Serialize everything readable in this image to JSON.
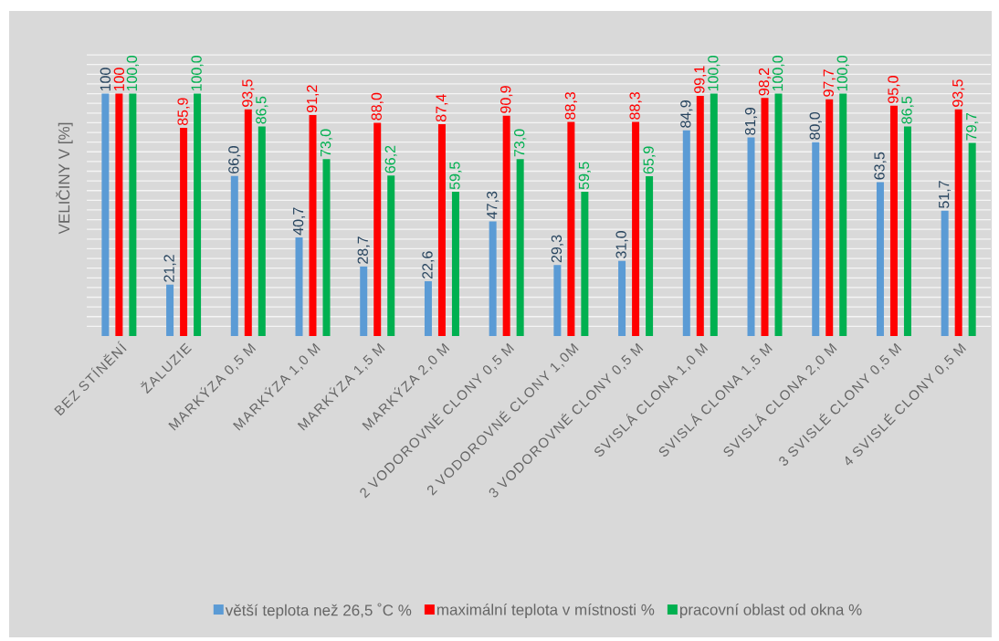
{
  "chart_data": {
    "type": "bar",
    "ylabel": "VELIČINY V [%]",
    "categories": [
      "BEZ STÍNĚNÍ",
      "ŽALUZIE",
      "MARKÝZA 0,5 M",
      "MARKÝZA 1,0 M",
      "MARKÝZA 1,5 M",
      "MARKÝZA 2,0 M",
      "2 VODOROVNÉ CLONY 0,5 M",
      "2 VODOROVNÉ CLONY 1,0M",
      "3 VODOROVNÉ CLONY 0,5 M",
      "SVISLÁ CLONA 1,0 M",
      "SVISLÁ CLONA 1,5 M",
      "SVISLÁ CLONA 2,0 M",
      "3 SVISLÉ CLONY 0,5 M",
      "4 SVISLÉ CLONY 0,5 M"
    ],
    "series": [
      {
        "name": "větší teplota než 26,5 ˚C %",
        "color": "#5b9bd5",
        "values": [
          100,
          21.2,
          66.0,
          40.7,
          28.7,
          22.6,
          47.3,
          29.3,
          31.0,
          84.9,
          81.9,
          80.0,
          63.5,
          51.7
        ],
        "value_labels": [
          "100",
          "21,2",
          "66,0",
          "40,7",
          "28,7",
          "22,6",
          "47,3",
          "29,3",
          "31,0",
          "84,9",
          "81,9",
          "80,0",
          "63,5",
          "51,7"
        ]
      },
      {
        "name": "maximální teplota v místnosti %",
        "color": "#ff0000",
        "values": [
          100,
          85.9,
          93.5,
          91.2,
          88.0,
          87.4,
          90.9,
          88.3,
          88.3,
          99.1,
          98.2,
          97.7,
          95.0,
          93.5
        ],
        "value_labels": [
          "100",
          "85,9",
          "93,5",
          "91,2",
          "88,0",
          "87,4",
          "90,9",
          "88,3",
          "88,3",
          "99,1",
          "98,2",
          "97,7",
          "95,0",
          "93,5"
        ]
      },
      {
        "name": "pracovní oblast od okna %",
        "color": "#00b050",
        "values": [
          100,
          100.0,
          86.5,
          73.0,
          66.2,
          59.5,
          73.0,
          59.5,
          65.9,
          100.0,
          100.0,
          100.0,
          86.5,
          79.7
        ],
        "value_labels": [
          "100,0",
          "100,0",
          "86,5",
          "73,0",
          "66,2",
          "59,5",
          "73,0",
          "59,5",
          "65,9",
          "100,0",
          "100,0",
          "100,0",
          "86,5",
          "79,7"
        ]
      }
    ],
    "ylim": [
      0,
      133
    ],
    "yticks": [
      {
        "value": 4,
        "label": null
      },
      {
        "value": 8,
        "label": null
      },
      {
        "value": 12,
        "label": null
      },
      {
        "value": 16,
        "label": null
      },
      {
        "value": 20,
        "label": null
      },
      {
        "value": 24,
        "label": null
      },
      {
        "value": 28,
        "label": null
      },
      {
        "value": 32,
        "label": null
      },
      {
        "value": 36,
        "label": null
      },
      {
        "value": 40,
        "label": null
      },
      {
        "value": 44,
        "label": null
      },
      {
        "value": 48,
        "label": null
      },
      {
        "value": 52,
        "label": null
      },
      {
        "value": 56,
        "label": null
      },
      {
        "value": 60,
        "label": null
      },
      {
        "value": 64,
        "label": null
      },
      {
        "value": 68,
        "label": null
      },
      {
        "value": 72,
        "label": null
      },
      {
        "value": 76,
        "label": null
      },
      {
        "value": 80,
        "label": null
      },
      {
        "value": 84,
        "label": null
      },
      {
        "value": 88,
        "label": null
      },
      {
        "value": 92,
        "label": null
      },
      {
        "value": 96,
        "label": null
      },
      {
        "value": 100,
        "label": null
      },
      {
        "value": 104,
        "label": null
      },
      {
        "value": 108,
        "label": null
      },
      {
        "value": 112,
        "label": null
      },
      {
        "value": 116,
        "label": null
      }
    ],
    "grid": "y",
    "legend": "bottom",
    "tick_labels": "x"
  }
}
